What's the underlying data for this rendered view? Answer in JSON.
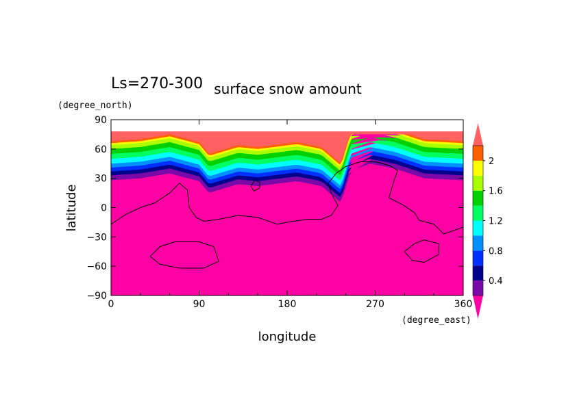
{
  "chart_data": {
    "type": "heatmap",
    "title": "surface snow amount",
    "subtitle": "Ls=270-300",
    "xlabel": "longitude",
    "ylabel": "latitude",
    "x_unit": "(degree_east)",
    "y_unit": "(degree_north)",
    "xlim": [
      0,
      360
    ],
    "ylim": [
      -90,
      90
    ],
    "x_ticks": [
      0,
      90,
      180,
      270,
      360
    ],
    "y_ticks": [
      -90,
      -60,
      -30,
      0,
      30,
      60,
      90
    ],
    "colorbar": {
      "levels": [
        0.2,
        0.4,
        0.6,
        0.8,
        1.0,
        1.2,
        1.4,
        1.6,
        1.8,
        2.0,
        2.2
      ],
      "tick_labels": [
        "0.4",
        "0.8",
        "1.2",
        "1.6",
        "2"
      ],
      "colors": [
        "#7a0aa8",
        "#00008c",
        "#0030ff",
        "#0090ff",
        "#00ffff",
        "#00ff60",
        "#00d000",
        "#aaff00",
        "#ffff00",
        "#ff5f00"
      ],
      "under_color": "#ff00a4",
      "over_color": "#ff6060",
      "extend": "both"
    },
    "fields": {
      "background_color": "#ff00a4",
      "cap_lat": [
        75,
        78
      ],
      "snow_edge": [
        [
          0,
          28
        ],
        [
          30,
          30
        ],
        [
          60,
          35
        ],
        [
          90,
          27
        ],
        [
          100,
          15
        ],
        [
          130,
          24
        ],
        [
          150,
          22
        ],
        [
          190,
          27
        ],
        [
          215,
          22
        ],
        [
          235,
          5
        ],
        [
          245,
          38
        ],
        [
          265,
          45
        ],
        [
          290,
          40
        ],
        [
          320,
          30
        ],
        [
          360,
          28
        ]
      ],
      "band_offsets_deg": [
        0,
        5,
        9,
        13,
        17,
        22,
        27,
        32,
        36,
        38,
        40
      ],
      "band_tops": [
        [
          [
            0,
            48
          ],
          [
            60,
            47
          ],
          [
            100,
            30
          ],
          [
            150,
            38
          ],
          [
            200,
            42
          ],
          [
            240,
            33
          ],
          [
            275,
            55
          ],
          [
            320,
            42
          ],
          [
            360,
            46
          ]
        ],
        [
          [
            0,
            52
          ],
          [
            60,
            51
          ],
          [
            100,
            36
          ],
          [
            150,
            43
          ],
          [
            200,
            46
          ],
          [
            240,
            38
          ],
          [
            275,
            58
          ],
          [
            320,
            47
          ],
          [
            360,
            50
          ]
        ],
        [
          [
            0,
            56
          ],
          [
            60,
            55
          ],
          [
            100,
            42
          ],
          [
            150,
            48
          ],
          [
            200,
            51
          ],
          [
            240,
            44
          ],
          [
            275,
            61
          ],
          [
            320,
            52
          ],
          [
            360,
            54
          ]
        ],
        [
          [
            0,
            60
          ],
          [
            60,
            59
          ],
          [
            100,
            48
          ],
          [
            150,
            53
          ],
          [
            200,
            56
          ],
          [
            240,
            51
          ],
          [
            275,
            64
          ],
          [
            320,
            57
          ],
          [
            360,
            58
          ]
        ],
        [
          [
            0,
            63
          ],
          [
            60,
            63
          ],
          [
            100,
            55
          ],
          [
            150,
            58
          ],
          [
            200,
            61
          ],
          [
            240,
            58
          ],
          [
            275,
            67
          ],
          [
            320,
            61
          ],
          [
            360,
            62
          ]
        ],
        [
          [
            0,
            67
          ],
          [
            60,
            67
          ],
          [
            100,
            62
          ],
          [
            150,
            63
          ],
          [
            200,
            66
          ],
          [
            240,
            64
          ],
          [
            275,
            69
          ],
          [
            320,
            66
          ],
          [
            360,
            66
          ]
        ],
        [
          [
            0,
            71
          ],
          [
            60,
            71
          ],
          [
            100,
            68
          ],
          [
            150,
            68
          ],
          [
            200,
            70
          ],
          [
            240,
            69
          ],
          [
            275,
            72
          ],
          [
            320,
            70
          ],
          [
            360,
            70
          ]
        ],
        [
          [
            0,
            74
          ],
          [
            60,
            74
          ],
          [
            100,
            73
          ],
          [
            150,
            73
          ],
          [
            200,
            74
          ],
          [
            240,
            73
          ],
          [
            275,
            74
          ],
          [
            320,
            74
          ],
          [
            360,
            74
          ]
        ],
        [
          [
            0,
            75
          ],
          [
            360,
            75
          ]
        ],
        [
          [
            0,
            76
          ],
          [
            360,
            76
          ]
        ],
        [
          [
            0,
            77
          ],
          [
            300,
            77
          ],
          [
            310,
            76
          ],
          [
            330,
            77
          ],
          [
            360,
            77
          ]
        ]
      ],
      "contours": [
        [
          [
            0,
            -17
          ],
          [
            15,
            -7
          ],
          [
            30,
            0
          ],
          [
            45,
            5
          ],
          [
            60,
            15
          ],
          [
            70,
            25
          ],
          [
            78,
            18
          ],
          [
            80,
            0
          ],
          [
            87,
            -10
          ],
          [
            95,
            -14
          ],
          [
            110,
            -12
          ],
          [
            130,
            -8
          ],
          [
            150,
            -10
          ],
          [
            170,
            -17
          ],
          [
            180,
            -15
          ],
          [
            200,
            -12
          ],
          [
            215,
            -12
          ],
          [
            225,
            -8
          ],
          [
            232,
            2
          ],
          [
            225,
            15
          ],
          [
            222,
            25
          ],
          [
            230,
            35
          ],
          [
            240,
            42
          ],
          [
            255,
            47
          ],
          [
            270,
            47
          ],
          [
            285,
            43
          ],
          [
            293,
            38
          ],
          [
            290,
            30
          ],
          [
            284,
            10
          ],
          [
            298,
            3
          ],
          [
            310,
            -5
          ],
          [
            315,
            -13
          ],
          [
            330,
            -17
          ],
          [
            340,
            -27
          ],
          [
            360,
            -20
          ]
        ],
        [
          [
            40,
            -50
          ],
          [
            50,
            -40
          ],
          [
            65,
            -35
          ],
          [
            90,
            -35
          ],
          [
            105,
            -40
          ],
          [
            110,
            -55
          ],
          [
            95,
            -62
          ],
          [
            70,
            -62
          ],
          [
            50,
            -58
          ],
          [
            40,
            -50
          ]
        ],
        [
          [
            300,
            -45
          ],
          [
            310,
            -37
          ],
          [
            320,
            -33
          ],
          [
            335,
            -37
          ],
          [
            335,
            -48
          ],
          [
            320,
            -56
          ],
          [
            308,
            -54
          ],
          [
            300,
            -45
          ]
        ],
        [
          [
            143,
            22
          ],
          [
            147,
            28
          ],
          [
            152,
            26
          ],
          [
            152,
            20
          ],
          [
            146,
            17
          ],
          [
            143,
            22
          ]
        ]
      ]
    }
  }
}
